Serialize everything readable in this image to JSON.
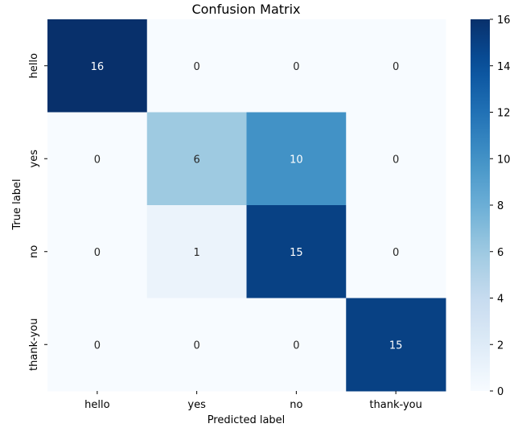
{
  "chart_data": {
    "type": "heatmap",
    "title": "Confusion Matrix",
    "xlabel": "Predicted label",
    "ylabel": "True label",
    "x_categories": [
      "hello",
      "yes",
      "no",
      "thank-you"
    ],
    "y_categories": [
      "hello",
      "yes",
      "no",
      "thank-you"
    ],
    "values": [
      [
        16,
        0,
        0,
        0
      ],
      [
        0,
        6,
        10,
        0
      ],
      [
        0,
        1,
        15,
        0
      ],
      [
        0,
        0,
        0,
        15
      ]
    ],
    "colorscale": "Blues",
    "colorbar": {
      "range": [
        0,
        16
      ],
      "ticks": [
        0,
        2,
        4,
        6,
        8,
        10,
        12,
        14,
        16
      ]
    }
  }
}
